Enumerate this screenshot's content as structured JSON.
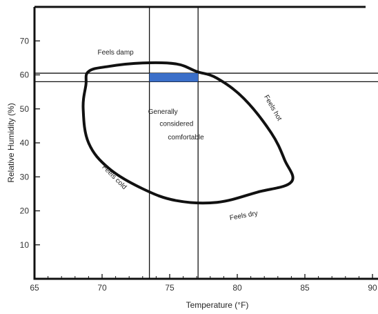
{
  "chart_data": {
    "type": "area",
    "xlabel": "Temperature (°F)",
    "ylabel": "Relative Humidity (%)",
    "xlim": [
      65,
      90
    ],
    "ylim": [
      0,
      80
    ],
    "x_ticks": [
      65,
      70,
      75,
      80,
      85,
      90
    ],
    "y_ticks": [
      10,
      20,
      30,
      40,
      50,
      60,
      70
    ],
    "grid": false,
    "comfort_zone": {
      "outline": [
        [
          69.0,
          61
        ],
        [
          70.5,
          62.5
        ],
        [
          73.0,
          63.5
        ],
        [
          75.5,
          63.2
        ],
        [
          77.0,
          61
        ],
        [
          78.5,
          59
        ],
        [
          80.5,
          53
        ],
        [
          82.5,
          43
        ],
        [
          83.5,
          35
        ],
        [
          84.0,
          28.5
        ],
        [
          81.5,
          25.5
        ],
        [
          78.5,
          22.5
        ],
        [
          75.5,
          23
        ],
        [
          73.0,
          26.5
        ],
        [
          70.5,
          32.5
        ],
        [
          69.0,
          40
        ],
        [
          68.6,
          50
        ],
        [
          68.8,
          57
        ],
        [
          69.0,
          61
        ]
      ]
    },
    "reference_lines": {
      "vertical": [
        73.5,
        77.1
      ],
      "horizontal": [
        60.5,
        58.0
      ]
    },
    "highlight": {
      "x": [
        73.5,
        77.1
      ],
      "y": [
        58.0,
        60.5
      ],
      "color": "#3B6FC9"
    },
    "annotations": [
      {
        "text": "Feels damp",
        "x": 71.0,
        "y": 66.0,
        "rotate": 0
      },
      {
        "text": "Feels hot",
        "x": 82.5,
        "y": 50.0,
        "rotate": 60
      },
      {
        "text": "Generally",
        "x": 74.5,
        "y": 48.5,
        "rotate": 0
      },
      {
        "text": "considered",
        "x": 75.5,
        "y": 45.0,
        "rotate": 0
      },
      {
        "text": "comfortable",
        "x": 76.2,
        "y": 41.0,
        "rotate": 0
      },
      {
        "text": "Feels cold",
        "x": 70.8,
        "y": 29.5,
        "rotate": 45
      },
      {
        "text": "Feels dry",
        "x": 80.5,
        "y": 18.0,
        "rotate": -10
      }
    ]
  },
  "colors": {
    "line": "#111111",
    "frame": "#111111",
    "highlight": "#3B6FC9"
  }
}
